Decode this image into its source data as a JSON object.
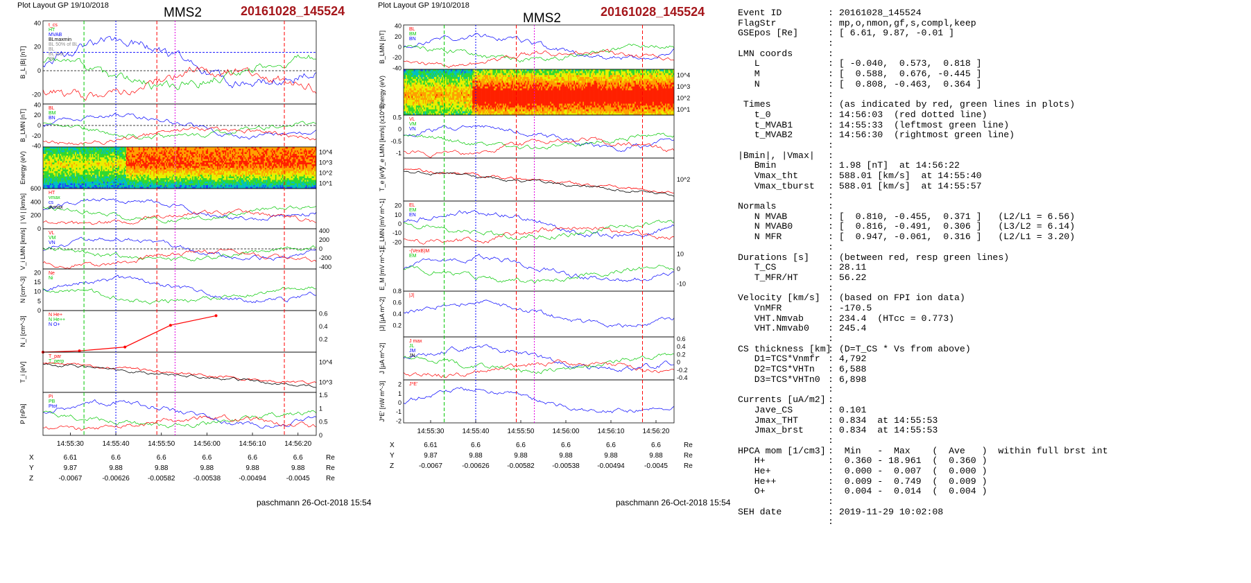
{
  "header": {
    "plot_layout": "Plot Layout GP 19/10/2018",
    "spacecraft": "MMS2",
    "event": "20161028_145524"
  },
  "footer": "paschmann 26-Oct-2018 15:54",
  "colors": {
    "event_red": "#a5161b",
    "red": "#ff0000",
    "green": "#00c800",
    "blue": "#0000ff",
    "magenta": "#e000e0",
    "black": "#000000",
    "gray": "#8c8c8c"
  },
  "time_axis": {
    "range": [
      "14:55:24",
      "14:56:24"
    ],
    "ticks": [
      "14:55:30",
      "14:55:40",
      "14:55:50",
      "14:56:00",
      "14:56:10",
      "14:56:20"
    ]
  },
  "ephemeris": {
    "labels": [
      "X",
      "Y",
      "Z"
    ],
    "unit": "Re",
    "rows": [
      [
        "6.61",
        "6.6",
        "6.6",
        "6.6",
        "6.6",
        "6.6"
      ],
      [
        "9.87",
        "9.88",
        "9.88",
        "9.88",
        "9.88",
        "9.88"
      ],
      [
        "-0.0067",
        "-0.00626",
        "-0.00582",
        "-0.00538",
        "-0.00494",
        "-0.0045"
      ]
    ]
  },
  "chart_data": [
    {
      "type": "line",
      "name": "left-panel-stack",
      "panels": [
        {
          "id": "BL_absB",
          "ylabel": "B_L |B| [nT]",
          "ylim": [
            -28,
            42
          ],
          "ticks": [
            -20,
            0,
            20,
            40
          ],
          "legend": [
            "t_cs",
            "HT",
            "MVAB",
            "BLmaxmin",
            "BL 50% of BL",
            "BL",
            "BL brst",
            "|B|"
          ],
          "zero_line": true,
          "ref_line": 15.5
        },
        {
          "id": "BLMN",
          "ylabel": "B_LMN [nT]",
          "ylim": [
            -42,
            42
          ],
          "ticks": [
            -40,
            -20,
            0,
            20,
            40
          ],
          "legend": [
            "BL",
            "BM",
            "BN"
          ],
          "zero_line": true
        },
        {
          "id": "ion_spectrogram",
          "type": "heatmap",
          "ylabel": "Energy (eV)",
          "log": true,
          "ticks": [
            "10^1",
            "10^2",
            "10^3",
            "10^4"
          ]
        },
        {
          "id": "Vi",
          "ylabel": "| Vi | [km/s]",
          "ylim": [
            0,
            600
          ],
          "ticks": [
            0,
            200,
            400,
            600
          ],
          "legend": [
            "HT",
            "vmax",
            "cs",
            "dvmax"
          ]
        },
        {
          "id": "ViLMN",
          "ylabel": "V_i LMN [km/s]",
          "ylim": [
            -450,
            450
          ],
          "ticks": [
            -400,
            -200,
            0,
            200,
            400
          ],
          "legend": [
            "VL",
            "VM",
            "VN"
          ],
          "zero_line": true
        },
        {
          "id": "N",
          "ylabel": "N [cm^-3]",
          "ylim": [
            0,
            22
          ],
          "ticks": [
            0,
            5,
            10,
            15,
            20
          ],
          "legend": [
            "Ne",
            "Ni"
          ]
        },
        {
          "id": "Ni_hpca",
          "ylabel": "N_i [cm^-3]",
          "ylim": [
            0,
            0.65
          ],
          "ticks": [
            0.2,
            0.4,
            0.6
          ],
          "legend": [
            "N He+",
            "N He++",
            "N O+"
          ],
          "series": [
            {
              "name": "N He++",
              "x": [
                "14:55:24",
                "14:55:32",
                "14:55:42",
                "14:55:52",
                "14:56:02"
              ],
              "y": [
                0.0,
                0.02,
                0.08,
                0.42,
                0.57
              ]
            }
          ]
        },
        {
          "id": "Ti",
          "ylabel": "T_i [eV]",
          "log": true,
          "ticks": [
            "10^3",
            "10^4"
          ],
          "legend": [
            "T_par",
            "T_perp"
          ]
        },
        {
          "id": "P",
          "ylabel": "P [nPa]",
          "ylim": [
            0,
            1.6
          ],
          "ticks": [
            0.0,
            0.5,
            1.0,
            1.5
          ],
          "legend": [
            "Pi",
            "PB",
            "Ptot"
          ]
        }
      ],
      "event_lines": {
        "green": [
          "14:55:33",
          "14:56:30"
        ],
        "red": [
          "14:55:49",
          "14:56:17"
        ],
        "magenta": "14:55:53",
        "blue_dotted": "14:55:40",
        "red_dotted": "14:56:03"
      }
    },
    {
      "type": "line",
      "name": "middle-panel-stack",
      "panels": [
        {
          "id": "BLMN",
          "ylabel": "B_LMN [nT]",
          "ylim": [
            -42,
            42
          ],
          "ticks": [
            -40,
            -20,
            0,
            20,
            40
          ],
          "legend": [
            "BL",
            "BM",
            "BN"
          ]
        },
        {
          "id": "electron_spectrogram",
          "type": "heatmap",
          "ylabel": "Energy (eV)",
          "log": true,
          "ticks": [
            "10^1",
            "10^2",
            "10^3",
            "10^4"
          ]
        },
        {
          "id": "VeLMN",
          "ylabel": "V_e LMN [km/s] (x10^3)",
          "ylim": [
            -1.2,
            0.6
          ],
          "ticks": [
            -1.0,
            -0.5,
            0.0,
            0.5
          ],
          "legend": [
            "VL",
            "VM",
            "VN"
          ]
        },
        {
          "id": "Te",
          "ylabel": "T_e [eV]",
          "log": true,
          "ticks": [
            "10^2"
          ]
        },
        {
          "id": "ELMN",
          "ylabel": "E_LMN [mV m^-1]",
          "ylim": [
            -25,
            25
          ],
          "ticks": [
            -20,
            -10,
            0,
            10,
            20
          ],
          "legend": [
            "EL",
            "EM",
            "EN"
          ]
        },
        {
          "id": "EM",
          "ylabel": "E_M [mV m^-1]",
          "ylim": [
            -15,
            15
          ],
          "ticks": [
            -10,
            0,
            10
          ],
          "legend": [
            "-(VexB)M",
            "EM"
          ]
        },
        {
          "id": "Jabs",
          "ylabel": "|J| [μA m^-2]",
          "ylim": [
            0,
            0.8
          ],
          "ticks": [
            0.2,
            0.4,
            0.6,
            0.8
          ],
          "legend": [
            "|J|"
          ]
        },
        {
          "id": "JLMN",
          "ylabel": "J [μA m^-2]",
          "ylim": [
            -0.45,
            0.65
          ],
          "ticks": [
            -0.4,
            -0.2,
            0.0,
            0.2,
            0.4,
            0.6
          ],
          "legend": [
            "J max",
            "JL",
            "JM",
            "JN"
          ]
        },
        {
          "id": "JdotE",
          "ylabel": "J*E' [nW m^-3]",
          "ylim": [
            -2.2,
            2.5
          ],
          "ticks": [
            -2,
            -1,
            0,
            1,
            2
          ],
          "legend": [
            "J*E'"
          ]
        }
      ]
    }
  ],
  "summary": {
    "rows": [
      [
        "Event ID",
        ": 20161028_145524"
      ],
      [
        "FlagStr",
        ": mp,o,nmon,gf,s,compl,keep"
      ],
      [
        "GSEpos [Re]",
        ": [ 6.61, 9.87, -0.01 ]"
      ],
      [
        "",
        ":"
      ],
      [
        "LMN coords",
        ":"
      ],
      [
        "   L",
        ": [ -0.040,  0.573,  0.818 ]"
      ],
      [
        "   M",
        ": [  0.588,  0.676, -0.445 ]"
      ],
      [
        "   N",
        ": [  0.808, -0.463,  0.364 ]"
      ],
      [
        "",
        ":"
      ],
      [
        " Times",
        ": (as indicated by red, green lines in plots)"
      ],
      [
        "   t_0",
        ": 14:56:03  (red dotted line)"
      ],
      [
        "   t_MVAB1",
        ": 14:55:33  (leftmost green line)"
      ],
      [
        "   t_MVAB2",
        ": 14:56:30  (rightmost green line)"
      ],
      [
        "",
        ":"
      ],
      [
        "|Bmin|, |Vmax|",
        ":"
      ],
      [
        "   Bmin",
        ": 1.98 [nT]  at 14:56:22"
      ],
      [
        "   Vmax_tht",
        ": 588.01 [km/s]  at 14:55:40"
      ],
      [
        "   Vmax_tburst",
        ": 588.01 [km/s]  at 14:55:57"
      ],
      [
        "",
        ":"
      ],
      [
        "Normals",
        ":"
      ],
      [
        "   N MVAB",
        ": [  0.810, -0.455,  0.371 ]   (L2/L1 = 6.56)"
      ],
      [
        "   N MVAB0",
        ": [  0.816, -0.491,  0.306 ]   (L3/L2 = 6.14)"
      ],
      [
        "   N MFR",
        ": [  0.947, -0.061,  0.316 ]   (L2/L1 = 3.20)"
      ],
      [
        "",
        ":"
      ],
      [
        "Durations [s]",
        ": (between red, resp green lines)"
      ],
      [
        "   T_CS",
        ": 28.11"
      ],
      [
        "   T_MFR/HT",
        ": 56.22"
      ],
      [
        "",
        ":"
      ],
      [
        "Velocity [km/s]",
        ": (based on FPI ion data)"
      ],
      [
        "   VnMFR",
        ": -170.5"
      ],
      [
        "   VHT.Nmvab",
        ": 234.4  (HTcc = 0.773)"
      ],
      [
        "   VHT.Nmvab0",
        ": 245.4"
      ],
      [
        "",
        ":"
      ],
      [
        "CS thickness [km]",
        ": (D=T_CS * Vs from above)"
      ],
      [
        "   D1=TCS*Vnmfr",
        ": 4,792"
      ],
      [
        "   D2=TCS*VHTn",
        ": 6,588"
      ],
      [
        "   D3=TCS*VHTn0",
        ": 6,898"
      ],
      [
        "",
        ":"
      ],
      [
        "Currents [uA/m2]",
        ":"
      ],
      [
        "   Jave_CS",
        ": 0.101"
      ],
      [
        "   Jmax_THT",
        ": 0.834  at 14:55:53"
      ],
      [
        "   Jmax_brst",
        ": 0.834  at 14:55:53"
      ],
      [
        "",
        ":"
      ],
      [
        "HPCA mom [1/cm3]",
        ":  Min   -  Max    (  Ave   )  within full brst int"
      ],
      [
        "   H+",
        ":  0.360 - 18.961  (  0.360 )"
      ],
      [
        "   He+",
        ":  0.000 -  0.007  (  0.000 )"
      ],
      [
        "   He++",
        ":  0.009 -  0.749  (  0.009 )"
      ],
      [
        "   O+",
        ":  0.004 -  0.014  (  0.004 )"
      ],
      [
        "",
        ":"
      ],
      [
        "SEH date",
        ": 2019-11-29 10:02:08"
      ],
      [
        "",
        ":"
      ]
    ]
  }
}
